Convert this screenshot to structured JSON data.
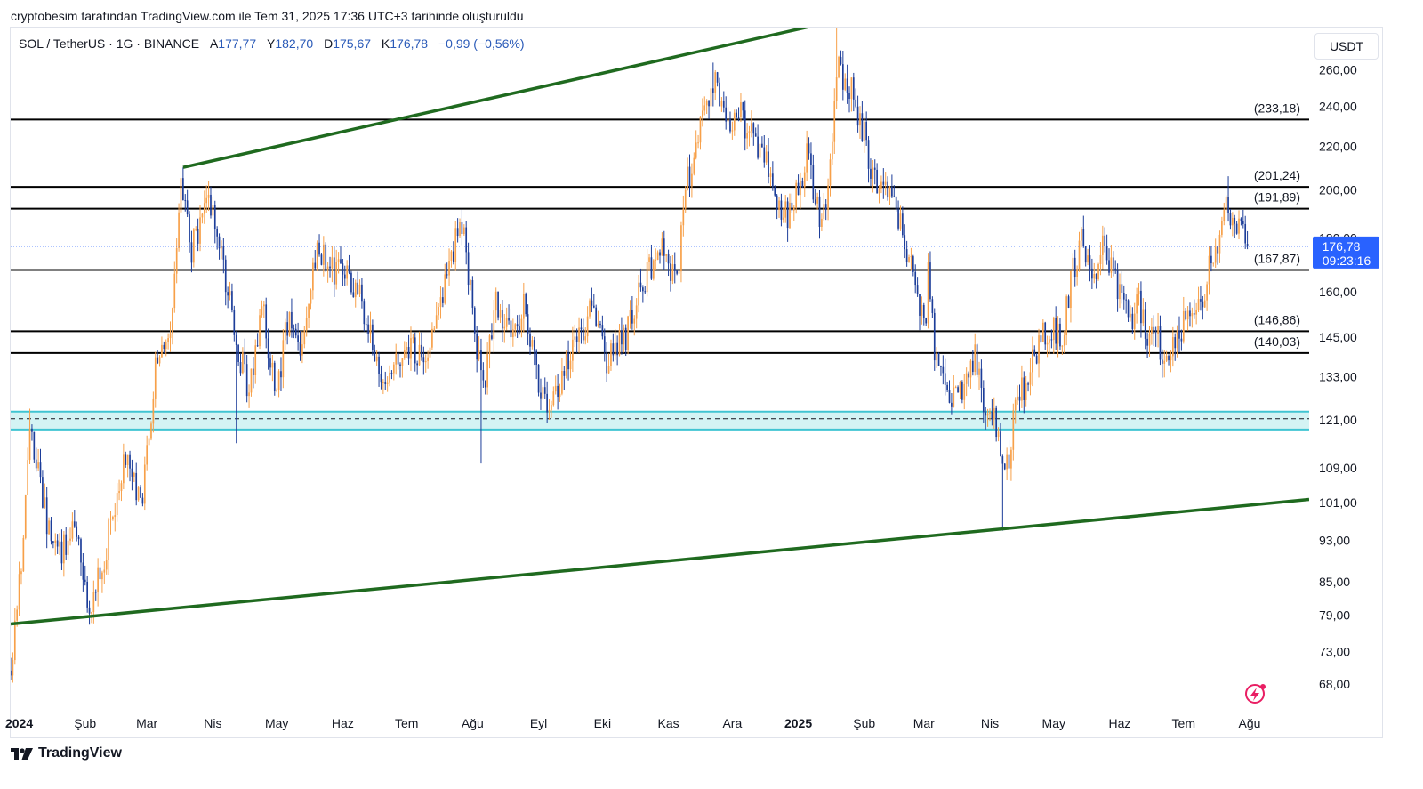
{
  "caption": "cryptobesim tarafından TradingView.com ile Tem 31, 2025 17:36 UTC+3 tarihinde oluşturuldu",
  "legend": {
    "symbol": "SOL / TetherUS · 1G · BINANCE",
    "open_label": "A",
    "open": "177,77",
    "high_label": "Y",
    "high": "182,70",
    "low_label": "D",
    "low": "175,67",
    "close_label": "K",
    "close": "176,78",
    "change": "−0,99 (−0,56%)"
  },
  "currency": "USDT",
  "brand": "TradingView",
  "chart_data": {
    "type": "candlestick",
    "symbol": "SOL / TetherUS",
    "interval": "1G",
    "exchange": "BINANCE",
    "scale": "log",
    "y_range": [
      64,
      285
    ],
    "y_ticks": [
      {
        "value": 260,
        "label": "260,00"
      },
      {
        "value": 240,
        "label": "240,00"
      },
      {
        "value": 220,
        "label": "220,00"
      },
      {
        "value": 200,
        "label": "200,00"
      },
      {
        "value": 180,
        "label": "180,00"
      },
      {
        "value": 160,
        "label": "160,00"
      },
      {
        "value": 145,
        "label": "145,00"
      },
      {
        "value": 133,
        "label": "133,00"
      },
      {
        "value": 121,
        "label": "121,00"
      },
      {
        "value": 109,
        "label": "109,00"
      },
      {
        "value": 101,
        "label": "101,00"
      },
      {
        "value": 93,
        "label": "93,00"
      },
      {
        "value": 85,
        "label": "85,00"
      },
      {
        "value": 79,
        "label": "79,00"
      },
      {
        "value": 73,
        "label": "73,00"
      },
      {
        "value": 68,
        "label": "68,00"
      }
    ],
    "x_ticks": [
      {
        "date": "2024-01-01",
        "label": "2024",
        "bold": true
      },
      {
        "date": "2024-02-01",
        "label": "Şub"
      },
      {
        "date": "2024-03-01",
        "label": "Mar"
      },
      {
        "date": "2024-04-01",
        "label": "Nis"
      },
      {
        "date": "2024-05-01",
        "label": "May"
      },
      {
        "date": "2024-06-01",
        "label": "Haz"
      },
      {
        "date": "2024-07-01",
        "label": "Tem"
      },
      {
        "date": "2024-08-01",
        "label": "Ağu"
      },
      {
        "date": "2024-09-01",
        "label": "Eyl"
      },
      {
        "date": "2024-10-01",
        "label": "Eki"
      },
      {
        "date": "2024-11-01",
        "label": "Kas"
      },
      {
        "date": "2024-12-01",
        "label": "Ara"
      },
      {
        "date": "2025-01-01",
        "label": "2025",
        "bold": true
      },
      {
        "date": "2025-02-01",
        "label": "Şub"
      },
      {
        "date": "2025-03-01",
        "label": "Mar"
      },
      {
        "date": "2025-04-01",
        "label": "Nis"
      },
      {
        "date": "2025-05-01",
        "label": "May"
      },
      {
        "date": "2025-06-01",
        "label": "Haz"
      },
      {
        "date": "2025-07-01",
        "label": "Tem"
      },
      {
        "date": "2025-08-01",
        "label": "Ağu"
      }
    ],
    "x_range": [
      "2023-12-28",
      "2025-08-29"
    ],
    "candles_end": "2025-07-31",
    "price_path": [
      [
        "2023-12-28",
        70
      ],
      [
        "2024-01-03",
        92
      ],
      [
        "2024-01-06",
        122
      ],
      [
        "2024-01-12",
        100
      ],
      [
        "2024-01-20",
        90
      ],
      [
        "2024-01-27",
        95
      ],
      [
        "2024-02-03",
        80
      ],
      [
        "2024-02-10",
        90
      ],
      [
        "2024-02-20",
        112
      ],
      [
        "2024-02-27",
        100
      ],
      [
        "2024-03-05",
        135
      ],
      [
        "2024-03-12",
        150
      ],
      [
        "2024-03-17",
        205
      ],
      [
        "2024-03-22",
        175
      ],
      [
        "2024-03-30",
        195
      ],
      [
        "2024-04-05",
        175
      ],
      [
        "2024-04-13",
        140
      ],
      [
        "2024-04-18",
        130
      ],
      [
        "2024-04-24",
        155
      ],
      [
        "2024-05-01",
        128
      ],
      [
        "2024-05-06",
        150
      ],
      [
        "2024-05-13",
        140
      ],
      [
        "2024-05-20",
        178
      ],
      [
        "2024-05-27",
        168
      ],
      [
        "2024-06-02",
        165
      ],
      [
        "2024-06-09",
        160
      ],
      [
        "2024-06-16",
        140
      ],
      [
        "2024-06-22",
        130
      ],
      [
        "2024-06-28",
        140
      ],
      [
        "2024-07-04",
        140
      ],
      [
        "2024-07-10",
        140
      ],
      [
        "2024-07-18",
        160
      ],
      [
        "2024-07-24",
        180
      ],
      [
        "2024-07-28",
        180
      ],
      [
        "2024-08-03",
        140
      ],
      [
        "2024-08-07",
        132
      ],
      [
        "2024-08-12",
        155
      ],
      [
        "2024-08-19",
        145
      ],
      [
        "2024-08-25",
        155
      ],
      [
        "2024-09-01",
        130
      ],
      [
        "2024-09-06",
        126
      ],
      [
        "2024-09-13",
        135
      ],
      [
        "2024-09-20",
        145
      ],
      [
        "2024-09-27",
        155
      ],
      [
        "2024-10-03",
        138
      ],
      [
        "2024-10-12",
        145
      ],
      [
        "2024-10-20",
        163
      ],
      [
        "2024-10-28",
        178
      ],
      [
        "2024-11-05",
        165
      ],
      [
        "2024-11-10",
        205
      ],
      [
        "2024-11-18",
        238
      ],
      [
        "2024-11-23",
        258
      ],
      [
        "2024-11-28",
        235
      ],
      [
        "2024-12-05",
        235
      ],
      [
        "2024-12-12",
        220
      ],
      [
        "2024-12-18",
        210
      ],
      [
        "2024-12-23",
        190
      ],
      [
        "2024-12-29",
        190
      ],
      [
        "2025-01-05",
        215
      ],
      [
        "2025-01-12",
        185
      ],
      [
        "2025-01-17",
        215
      ],
      [
        "2025-01-19",
        262
      ],
      [
        "2025-01-24",
        255
      ],
      [
        "2025-01-30",
        235
      ],
      [
        "2025-02-04",
        210
      ],
      [
        "2025-02-10",
        200
      ],
      [
        "2025-02-17",
        190
      ],
      [
        "2025-02-23",
        170
      ],
      [
        "2025-03-02",
        145
      ],
      [
        "2025-03-03",
        175
      ],
      [
        "2025-03-06",
        140
      ],
      [
        "2025-03-11",
        130
      ],
      [
        "2025-03-18",
        128
      ],
      [
        "2025-03-25",
        138
      ],
      [
        "2025-03-30",
        125
      ],
      [
        "2025-04-05",
        118
      ],
      [
        "2025-04-08",
        105
      ],
      [
        "2025-04-13",
        125
      ],
      [
        "2025-04-20",
        135
      ],
      [
        "2025-04-26",
        148
      ],
      [
        "2025-05-05",
        145
      ],
      [
        "2025-05-10",
        168
      ],
      [
        "2025-05-14",
        178
      ],
      [
        "2025-05-20",
        168
      ],
      [
        "2025-05-25",
        178
      ],
      [
        "2025-05-30",
        165
      ],
      [
        "2025-06-05",
        150
      ],
      [
        "2025-06-10",
        155
      ],
      [
        "2025-06-14",
        145
      ],
      [
        "2025-06-18",
        150
      ],
      [
        "2025-06-22",
        135
      ],
      [
        "2025-06-28",
        148
      ],
      [
        "2025-07-05",
        150
      ],
      [
        "2025-07-10",
        160
      ],
      [
        "2025-07-16",
        175
      ],
      [
        "2025-07-20",
        195
      ],
      [
        "2025-07-24",
        188
      ],
      [
        "2025-07-29",
        180
      ],
      [
        "2025-07-31",
        176.78
      ]
    ],
    "volatility": 0.035,
    "wick_extremes": [
      {
        "date": "2024-01-06",
        "high": 124
      },
      {
        "date": "2024-03-18",
        "high": 210
      },
      {
        "date": "2024-04-12",
        "low": 115
      },
      {
        "date": "2024-08-05",
        "low": 110
      },
      {
        "date": "2024-11-22",
        "high": 264
      },
      {
        "date": "2025-01-19",
        "high": 295
      },
      {
        "date": "2025-04-07",
        "low": 95
      },
      {
        "date": "2025-07-22",
        "high": 206
      }
    ],
    "last_price": {
      "value": 176.78,
      "label": "176,78",
      "countdown": "09:23:16"
    },
    "up_color": "#f7a049",
    "down_color": "#1c3d99",
    "price_line_color": "#2962ff",
    "horizontal_levels": [
      {
        "value": 233.18,
        "label": "(233,18)"
      },
      {
        "value": 201.24,
        "label": "(201,24)"
      },
      {
        "value": 191.89,
        "label": "(191,89)"
      },
      {
        "value": 167.87,
        "label": "(167,87)"
      },
      {
        "value": 146.86,
        "label": "(146,86)"
      },
      {
        "value": 140.03,
        "label": "(140,03)"
      }
    ],
    "support_zone": {
      "top": 123.2,
      "bottom": 118.5,
      "mid": 121.3,
      "fill": "#d4f3f4",
      "edge_color": "#40c4d2"
    },
    "trendlines": [
      {
        "role": "channel-top",
        "from": [
          "2024-03-18",
          210
        ],
        "to": [
          "2025-07-20",
          350
        ],
        "color": "#1f6a1f"
      },
      {
        "role": "channel-bottom",
        "from": [
          "2023-12-28",
          77.5
        ],
        "to": [
          "2025-08-29",
          101.7
        ],
        "color": "#1f6a1f"
      }
    ]
  }
}
